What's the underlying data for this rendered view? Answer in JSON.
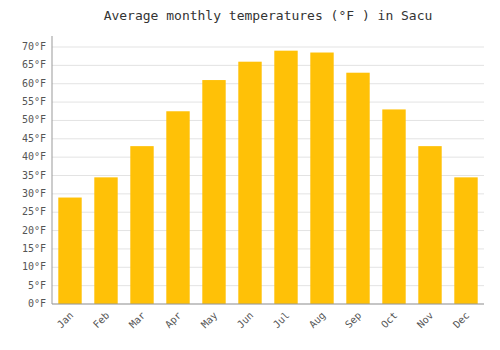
{
  "chart_data": {
    "type": "bar",
    "title": "Average monthly temperatures (°F ) in Sacu",
    "categories": [
      "Jan",
      "Feb",
      "Mar",
      "Apr",
      "May",
      "Jun",
      "Jul",
      "Aug",
      "Sep",
      "Oct",
      "Nov",
      "Dec"
    ],
    "values": [
      29,
      34.5,
      43,
      52.5,
      61,
      66,
      69,
      68.5,
      63,
      53,
      43,
      34.5
    ],
    "color": "#FFC107",
    "ylim": [
      0,
      73
    ],
    "yticks": [
      {
        "value": 0,
        "label": "0°F"
      },
      {
        "value": 5,
        "label": "5°F"
      },
      {
        "value": 10,
        "label": "10°F"
      },
      {
        "value": 15,
        "label": "15°F"
      },
      {
        "value": 20,
        "label": "20°F"
      },
      {
        "value": 25,
        "label": "25°F"
      },
      {
        "value": 30,
        "label": "30°F"
      },
      {
        "value": 35,
        "label": "35°F"
      },
      {
        "value": 40,
        "label": "40°F"
      },
      {
        "value": 45,
        "label": "45°F"
      },
      {
        "value": 50,
        "label": "50°F"
      },
      {
        "value": 55,
        "label": "55°F"
      },
      {
        "value": 60,
        "label": "60°F"
      },
      {
        "value": 65,
        "label": "65°F"
      },
      {
        "value": 70,
        "label": "70°F"
      }
    ],
    "grid": true
  }
}
